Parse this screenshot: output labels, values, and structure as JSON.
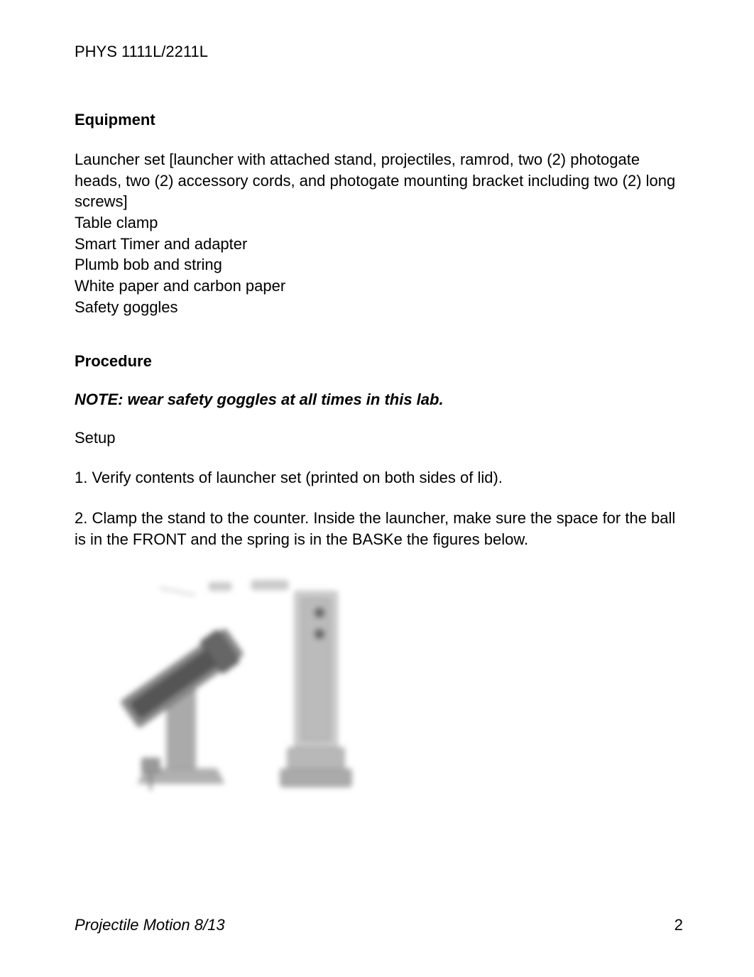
{
  "header": {
    "course_code": "PHYS 1111L/2211L"
  },
  "sections": {
    "equipment": {
      "heading": "Equipment",
      "items": "Launcher set [launcher with attached stand, projectiles, ramrod, two (2) photogate heads, two (2) accessory cords, and photogate mounting bracket including two (2) long screws]\nTable clamp\nSmart Timer and adapter\nPlumb bob and string\nWhite paper and carbon paper\nSafety goggles"
    },
    "procedure": {
      "heading": "Procedure",
      "note": "NOTE:  wear safety goggles at all times in this lab.",
      "setup_label": "Setup",
      "steps": [
        "1.   Verify contents of launcher set (printed on both sides of lid).",
        "2.  Clamp the stand to the counter. Inside the launcher, make sure the space for the ball is in the FRONT and the spring is in the BASKe the figures below."
      ]
    }
  },
  "figure": {
    "colors": {
      "light_gray": "#cccccc",
      "mid_gray": "#999999",
      "dark_gray": "#666666",
      "darker_gray": "#444444",
      "base_gray": "#b0b0b0"
    }
  },
  "footer": {
    "left": "Projectile Motion 8/13",
    "page_number": "2"
  }
}
